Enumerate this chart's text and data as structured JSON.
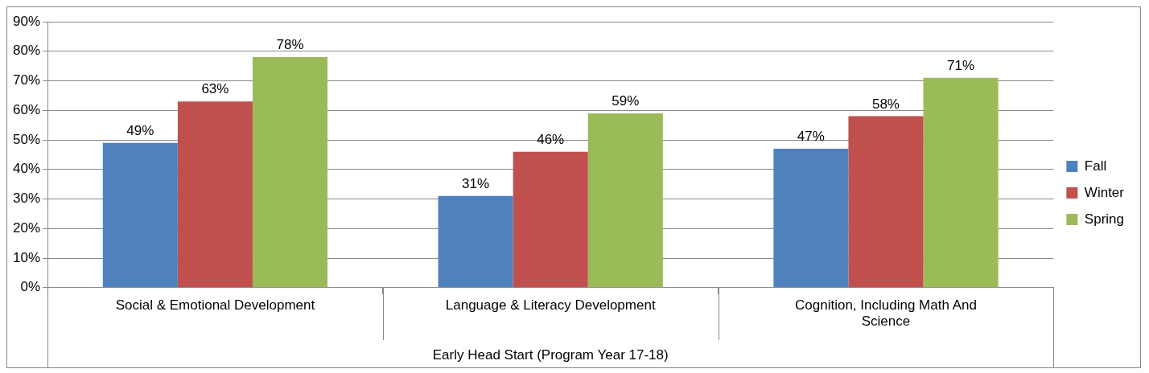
{
  "chart_data": {
    "type": "bar",
    "xlabel": "Early Head Start (Program Year 17-18)",
    "categories": [
      "Social & Emotional Development",
      "Language & Literacy Development",
      "Cognition, Including Math And Science"
    ],
    "series": [
      {
        "name": "Fall",
        "color": "#4f81bd",
        "values": [
          49,
          31,
          47
        ],
        "value_labels": [
          "49%",
          "31%",
          "47%"
        ]
      },
      {
        "name": "Winter",
        "color": "#c0504d",
        "values": [
          63,
          46,
          58
        ],
        "value_labels": [
          "63%",
          "46%",
          "58%"
        ]
      },
      {
        "name": "Spring",
        "color": "#9bbb59",
        "values": [
          78,
          59,
          71
        ],
        "value_labels": [
          "78%",
          "59%",
          "71%"
        ]
      }
    ],
    "ylim": [
      0,
      90
    ],
    "yticks": [
      {
        "value": 0,
        "label": "0%"
      },
      {
        "value": 10,
        "label": "10%"
      },
      {
        "value": 20,
        "label": "20%"
      },
      {
        "value": 30,
        "label": "30%"
      },
      {
        "value": 40,
        "label": "40%"
      },
      {
        "value": 50,
        "label": "50%"
      },
      {
        "value": 60,
        "label": "60%"
      },
      {
        "value": 70,
        "label": "70%"
      },
      {
        "value": 80,
        "label": "80%"
      },
      {
        "value": 90,
        "label": "90%"
      }
    ],
    "grid": "y",
    "legend": "right"
  }
}
